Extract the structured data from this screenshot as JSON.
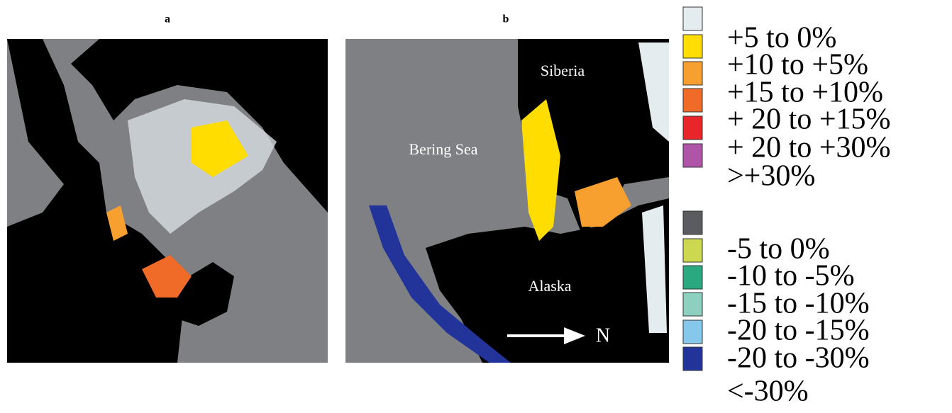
{
  "panels": [
    {
      "label": "a"
    },
    {
      "label": "b",
      "places": [
        "Siberia",
        "Bering Sea",
        "Alaska"
      ],
      "arrow_label": "N"
    }
  ],
  "legend": [
    {
      "label": "+5 to 0%",
      "color": "#e4ecf0"
    },
    {
      "label": "+10 to +5%",
      "color": "#ffdd00"
    },
    {
      "label": "+15 to +10%",
      "color": "#f7a030"
    },
    {
      "label": "+ 20 to +15%",
      "color": "#f06a28"
    },
    {
      "label": "+ 20 to +30%",
      "color": "#e8262a"
    },
    {
      "label": ">+30%",
      "color": "#b054a8"
    },
    {
      "label": "-5 to 0%",
      "color": "#5a5c60"
    },
    {
      "label": "-10 to -5%",
      "color": "#cbd850"
    },
    {
      "label": "-15 to -10%",
      "color": "#2aa880"
    },
    {
      "label": "-20 to -15%",
      "color": "#8ed0c0"
    },
    {
      "label": "-20 to -30%",
      "color": "#86c8ec"
    },
    {
      "label": "<-30%",
      "color": "#22349a"
    }
  ]
}
